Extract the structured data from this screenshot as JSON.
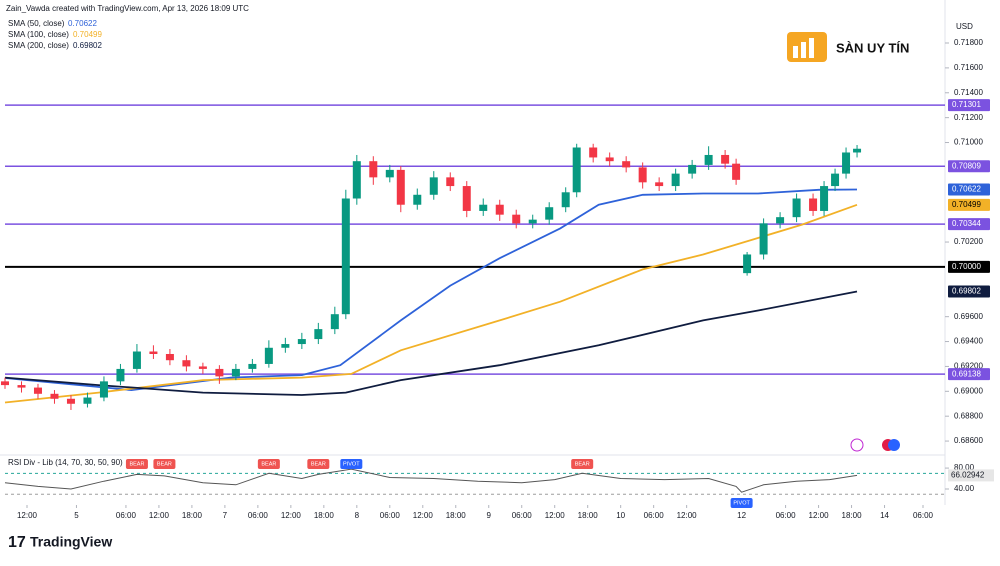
{
  "header": "Zain_Vawda created with TradingView.com, Apr 13, 2026 18:09 UTC",
  "brand": "SÀN UY TÍN",
  "footer": "TradingView",
  "currency": "USD",
  "chart_data": {
    "type": "candlestick",
    "xlim": [
      0,
      171
    ],
    "ylim": [
      0.68488,
      0.71985
    ],
    "yticks": [
      {
        "value": 0.718,
        "label": "0.71800"
      },
      {
        "value": 0.716,
        "label": "0.71600"
      },
      {
        "value": 0.714,
        "label": "0.71400"
      },
      {
        "value": 0.712,
        "label": "0.71200"
      },
      {
        "value": 0.71,
        "label": "0.71000"
      },
      {
        "value": 0.702,
        "label": "0.70200"
      },
      {
        "value": 0.696,
        "label": "0.69600"
      },
      {
        "value": 0.694,
        "label": "0.69400"
      },
      {
        "value": 0.692,
        "label": "0.69200"
      },
      {
        "value": 0.69,
        "label": "0.69000"
      },
      {
        "value": 0.688,
        "label": "0.68800"
      },
      {
        "value": 0.686,
        "label": "0.68600"
      }
    ],
    "xticks": [
      {
        "value": 4,
        "label": "12:00"
      },
      {
        "value": 13,
        "label": "5"
      },
      {
        "value": 22,
        "label": "06:00"
      },
      {
        "value": 28,
        "label": "12:00"
      },
      {
        "value": 34,
        "label": "18:00"
      },
      {
        "value": 40,
        "label": "7"
      },
      {
        "value": 46,
        "label": "06:00"
      },
      {
        "value": 52,
        "label": "12:00"
      },
      {
        "value": 58,
        "label": "18:00"
      },
      {
        "value": 64,
        "label": "8"
      },
      {
        "value": 70,
        "label": "06:00"
      },
      {
        "value": 76,
        "label": "12:00"
      },
      {
        "value": 82,
        "label": "18:00"
      },
      {
        "value": 88,
        "label": "9"
      },
      {
        "value": 94,
        "label": "06:00"
      },
      {
        "value": 100,
        "label": "12:00"
      },
      {
        "value": 106,
        "label": "18:00"
      },
      {
        "value": 112,
        "label": "10"
      },
      {
        "value": 118,
        "label": "06:00"
      },
      {
        "value": 124,
        "label": "12:00"
      },
      {
        "value": 134,
        "label": "12"
      },
      {
        "value": 142,
        "label": "06:00"
      },
      {
        "value": 148,
        "label": "12:00"
      },
      {
        "value": 154,
        "label": "18:00"
      },
      {
        "value": 160,
        "label": "14"
      },
      {
        "value": 167,
        "label": "06:00"
      }
    ],
    "up_color": "#089981",
    "down_color": "#f23645",
    "candles": [
      [
        0,
        0.6908,
        0.6911,
        0.6902,
        0.6905
      ],
      [
        3,
        0.6905,
        0.6908,
        0.6899,
        0.6903
      ],
      [
        6,
        0.6903,
        0.6906,
        0.6894,
        0.6898
      ],
      [
        9,
        0.6898,
        0.6901,
        0.689,
        0.6894
      ],
      [
        12,
        0.6894,
        0.6897,
        0.6885,
        0.689
      ],
      [
        15,
        0.689,
        0.6899,
        0.6887,
        0.6895
      ],
      [
        18,
        0.6895,
        0.6912,
        0.6892,
        0.6908
      ],
      [
        21,
        0.6908,
        0.6922,
        0.6905,
        0.6918
      ],
      [
        24,
        0.6918,
        0.6938,
        0.6915,
        0.6932
      ],
      [
        27,
        0.6932,
        0.6937,
        0.6926,
        0.693
      ],
      [
        30,
        0.693,
        0.6934,
        0.6921,
        0.6925
      ],
      [
        33,
        0.6925,
        0.6929,
        0.6916,
        0.692
      ],
      [
        36,
        0.692,
        0.6923,
        0.6914,
        0.6918
      ],
      [
        39,
        0.6918,
        0.6921,
        0.6906,
        0.6912
      ],
      [
        42,
        0.6912,
        0.6922,
        0.6909,
        0.6918
      ],
      [
        45,
        0.6918,
        0.6926,
        0.6915,
        0.6922
      ],
      [
        48,
        0.6922,
        0.6941,
        0.6919,
        0.6935
      ],
      [
        51,
        0.6935,
        0.6943,
        0.6931,
        0.6938
      ],
      [
        54,
        0.6938,
        0.6947,
        0.6934,
        0.6942
      ],
      [
        57,
        0.6942,
        0.6955,
        0.6938,
        0.695
      ],
      [
        60,
        0.695,
        0.6968,
        0.6946,
        0.6962
      ],
      [
        62,
        0.6962,
        0.7062,
        0.6958,
        0.7055
      ],
      [
        64,
        0.7055,
        0.709,
        0.705,
        0.7085
      ],
      [
        67,
        0.7085,
        0.7089,
        0.7066,
        0.7072
      ],
      [
        70,
        0.7072,
        0.7082,
        0.7068,
        0.7078
      ],
      [
        72,
        0.7078,
        0.7081,
        0.7044,
        0.705
      ],
      [
        75,
        0.705,
        0.7063,
        0.7046,
        0.7058
      ],
      [
        78,
        0.7058,
        0.7077,
        0.7054,
        0.7072
      ],
      [
        81,
        0.7072,
        0.7076,
        0.7061,
        0.7065
      ],
      [
        84,
        0.7065,
        0.7069,
        0.704,
        0.7045
      ],
      [
        87,
        0.7045,
        0.7055,
        0.7041,
        0.705
      ],
      [
        90,
        0.705,
        0.7054,
        0.7037,
        0.7042
      ],
      [
        93,
        0.7042,
        0.7046,
        0.7031,
        0.7035
      ],
      [
        96,
        0.7035,
        0.7042,
        0.7031,
        0.7038
      ],
      [
        99,
        0.7038,
        0.7052,
        0.7034,
        0.7048
      ],
      [
        102,
        0.7048,
        0.7064,
        0.7044,
        0.706
      ],
      [
        104,
        0.706,
        0.7099,
        0.7056,
        0.7096
      ],
      [
        107,
        0.7096,
        0.7099,
        0.7084,
        0.7088
      ],
      [
        110,
        0.7088,
        0.7092,
        0.7081,
        0.7085
      ],
      [
        113,
        0.7085,
        0.7089,
        0.7076,
        0.708
      ],
      [
        116,
        0.708,
        0.7084,
        0.7063,
        0.7068
      ],
      [
        119,
        0.7068,
        0.7072,
        0.7061,
        0.7065
      ],
      [
        122,
        0.7065,
        0.7079,
        0.7061,
        0.7075
      ],
      [
        125,
        0.7075,
        0.7086,
        0.7071,
        0.7082
      ],
      [
        128,
        0.7082,
        0.7097,
        0.7078,
        0.709
      ],
      [
        131,
        0.709,
        0.7094,
        0.7079,
        0.7083
      ],
      [
        133,
        0.7083,
        0.7087,
        0.7066,
        0.707
      ],
      [
        135,
        0.6995,
        0.7012,
        0.6993,
        0.701
      ],
      [
        138,
        0.701,
        0.7039,
        0.7006,
        0.7035
      ],
      [
        141,
        0.7035,
        0.7044,
        0.7031,
        0.704
      ],
      [
        144,
        0.704,
        0.7059,
        0.7036,
        0.7055
      ],
      [
        147,
        0.7055,
        0.7059,
        0.7041,
        0.7045
      ],
      [
        149,
        0.7045,
        0.7069,
        0.7041,
        0.7065
      ],
      [
        151,
        0.7065,
        0.7079,
        0.7061,
        0.7075
      ],
      [
        153,
        0.7075,
        0.7096,
        0.7071,
        0.7092
      ],
      [
        155,
        0.7092,
        0.7098,
        0.7088,
        0.7095
      ]
    ],
    "series": [
      {
        "name": "SMA (50, close)",
        "color": "#2e62d9",
        "last": 0.70622,
        "x": [
          0,
          23,
          41,
          54,
          61,
          72,
          81,
          90,
          101,
          108,
          116,
          127,
          137,
          148,
          155
        ],
        "values": [
          0.69107,
          0.6901,
          0.6911,
          0.6913,
          0.6921,
          0.6957,
          0.6985,
          0.7007,
          0.7031,
          0.705,
          0.7058,
          0.7059,
          0.7059,
          0.7062,
          0.70622
        ]
      },
      {
        "name": "SMA (100, close)",
        "color": "#f2b127",
        "last": 0.70499,
        "x": [
          0,
          17,
          36,
          54,
          63,
          72,
          90,
          101,
          116,
          127,
          136,
          145,
          155
        ],
        "values": [
          0.6891,
          0.6899,
          0.6909,
          0.6911,
          0.6914,
          0.6933,
          0.6957,
          0.6972,
          0.6998,
          0.701,
          0.7022,
          0.7034,
          0.70499
        ]
      },
      {
        "name": "SMA (200, close)",
        "color": "#0f1c3f",
        "last": 0.69802,
        "x": [
          0,
          17,
          36,
          54,
          62,
          72,
          90,
          108,
          127,
          137,
          155
        ],
        "values": [
          0.6911,
          0.6905,
          0.6899,
          0.6897,
          0.6899,
          0.6909,
          0.6921,
          0.6937,
          0.6957,
          0.6965,
          0.69802
        ]
      }
    ],
    "levels": [
      {
        "value": 0.71301,
        "color": "#7b52e0"
      },
      {
        "value": 0.70809,
        "color": "#7b52e0"
      },
      {
        "value": 0.70344,
        "color": "#7b52e0"
      },
      {
        "value": 0.7,
        "label": "0.70000",
        "color": "#000000"
      },
      {
        "value": 0.69138,
        "color": "#7b52e0"
      }
    ],
    "rsi": {
      "title": "RSI Div - Lib (14, 70, 30, 50, 90)",
      "color": "#555555",
      "ylim": [
        19,
        105
      ],
      "yticks": [
        {
          "value": 80,
          "label": "80.00"
        },
        {
          "value": 40,
          "label": "40.00"
        }
      ],
      "bands": [
        70,
        30
      ],
      "last": 66.02942,
      "x": [
        0,
        6,
        12,
        18,
        24,
        29,
        36,
        42,
        48,
        54,
        57,
        63,
        70,
        78,
        86,
        94,
        100,
        105,
        112,
        120,
        128,
        133,
        134,
        138,
        144,
        150,
        155
      ],
      "values": [
        52,
        45,
        40,
        55,
        68,
        65,
        52,
        48,
        70,
        60,
        68,
        78,
        62,
        60,
        55,
        52,
        58,
        70,
        60,
        58,
        60,
        45,
        34,
        48,
        55,
        58,
        66.02942
      ],
      "markers": [
        {
          "x": 24,
          "text": "BEAR",
          "position": "above"
        },
        {
          "x": 29,
          "text": "BEAR",
          "position": "above"
        },
        {
          "x": 48,
          "text": "BEAR",
          "position": "above"
        },
        {
          "x": 57,
          "text": "BEAR",
          "position": "above"
        },
        {
          "x": 63,
          "text": "PIVOT",
          "position": "above"
        },
        {
          "x": 105,
          "text": "BEAR",
          "position": "above"
        },
        {
          "x": 134,
          "text": "PIVOT",
          "position": "below"
        }
      ]
    }
  }
}
